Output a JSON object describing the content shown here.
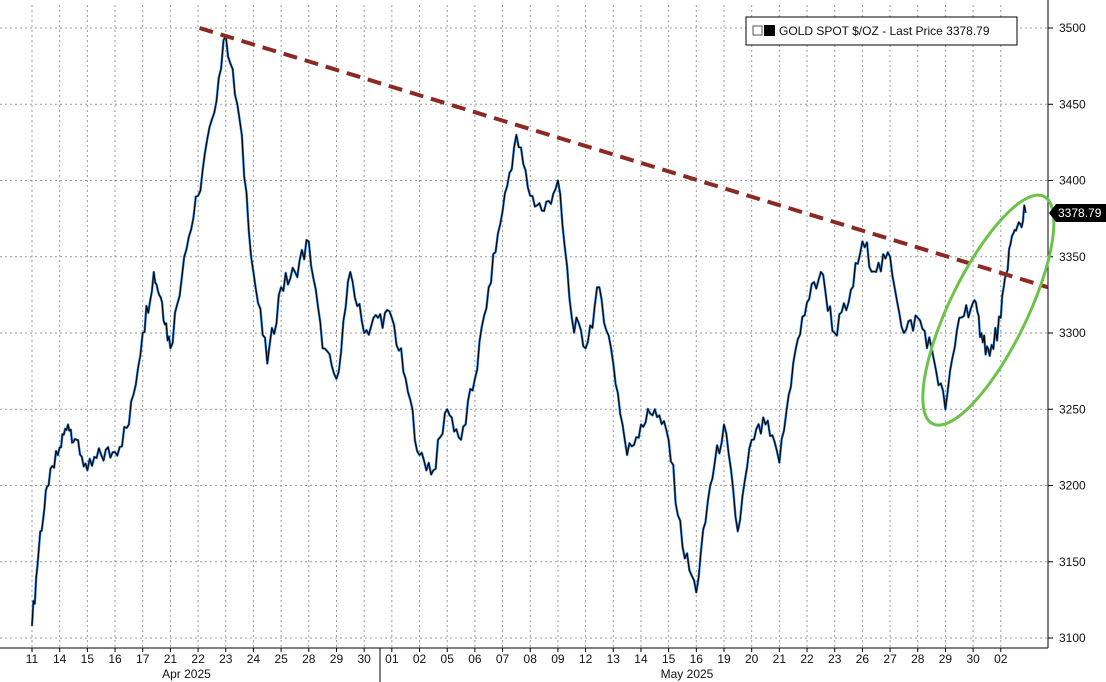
{
  "chart_data": {
    "type": "line",
    "title": "",
    "xlabel": "",
    "ylabel": "",
    "legend": {
      "label": "GOLD SPOT $/OZ - Last Price 3378.79",
      "placement": "top-right"
    },
    "last_price_label": "3378.79",
    "last_price": 3378.79,
    "ylim": [
      3100,
      3500
    ],
    "y_ticks": [
      "3100",
      "3150",
      "3200",
      "3250",
      "3300",
      "3350",
      "3400",
      "3450",
      "3500"
    ],
    "x_tick_labels": [
      "11",
      "14",
      "15",
      "16",
      "17",
      "21",
      "22",
      "23",
      "24",
      "25",
      "28",
      "29",
      "30",
      "01",
      "02",
      "05",
      "06",
      "07",
      "08",
      "09",
      "12",
      "13",
      "14",
      "15",
      "16",
      "19",
      "20",
      "21",
      "22",
      "23",
      "26",
      "27",
      "28",
      "29",
      "30",
      "02"
    ],
    "month_labels": [
      "Apr 2025",
      "May 2025"
    ],
    "grid": true,
    "series": [
      {
        "name": "GOLD SPOT $/OZ",
        "color": "#000000",
        "highlight_color": "#2f7fd6",
        "x": [
          0,
          0.3,
          0.6,
          1,
          1.3,
          1.6,
          2,
          2.5,
          3,
          3.5,
          4,
          4.4,
          4.7,
          5,
          5.5,
          6,
          6.5,
          7,
          7.5,
          8,
          8.5,
          9,
          9.5,
          10,
          10.5,
          11,
          11.5,
          12,
          12.5,
          13,
          13.5,
          14,
          14.5,
          15,
          15.5,
          16,
          16.5,
          17,
          17.5,
          18,
          18.5,
          19,
          19.5,
          20,
          20.5,
          21,
          21.5,
          22,
          22.5,
          23,
          23.5,
          24,
          24.5,
          25,
          25.5,
          26,
          26.5,
          27,
          27.5,
          28,
          28.5,
          29,
          29.5,
          30,
          30.5,
          31,
          31.5,
          32,
          32.5,
          33,
          33.5,
          34,
          34.3,
          34.6,
          35,
          35.3,
          35.6,
          35.9
        ],
        "values": [
          3108,
          3170,
          3200,
          3225,
          3240,
          3230,
          3210,
          3220,
          3222,
          3240,
          3300,
          3340,
          3320,
          3290,
          3350,
          3390,
          3440,
          3495,
          3440,
          3340,
          3280,
          3330,
          3340,
          3360,
          3290,
          3270,
          3340,
          3300,
          3310,
          3310,
          3270,
          3220,
          3210,
          3250,
          3230,
          3270,
          3330,
          3380,
          3430,
          3390,
          3380,
          3400,
          3310,
          3290,
          3330,
          3280,
          3220,
          3240,
          3250,
          3230,
          3160,
          3130,
          3200,
          3240,
          3170,
          3230,
          3240,
          3215,
          3280,
          3320,
          3340,
          3300,
          3320,
          3360,
          3340,
          3350,
          3300,
          3310,
          3290,
          3250,
          3310,
          3320,
          3300,
          3285,
          3310,
          3355,
          3370,
          3378.79
        ]
      }
    ],
    "annotations": [
      {
        "type": "trendline",
        "style": "dashed",
        "color": "#8b2a22",
        "from": {
          "x": 6.05,
          "y": 3500
        },
        "to": {
          "x": 36.7,
          "y": 3330
        }
      },
      {
        "type": "ellipse",
        "color": "#6cc24a",
        "center": {
          "x": 34.55,
          "y": 3315
        },
        "rx_units": 1.4,
        "ry_units": 83,
        "angle_deg": 26
      }
    ]
  }
}
